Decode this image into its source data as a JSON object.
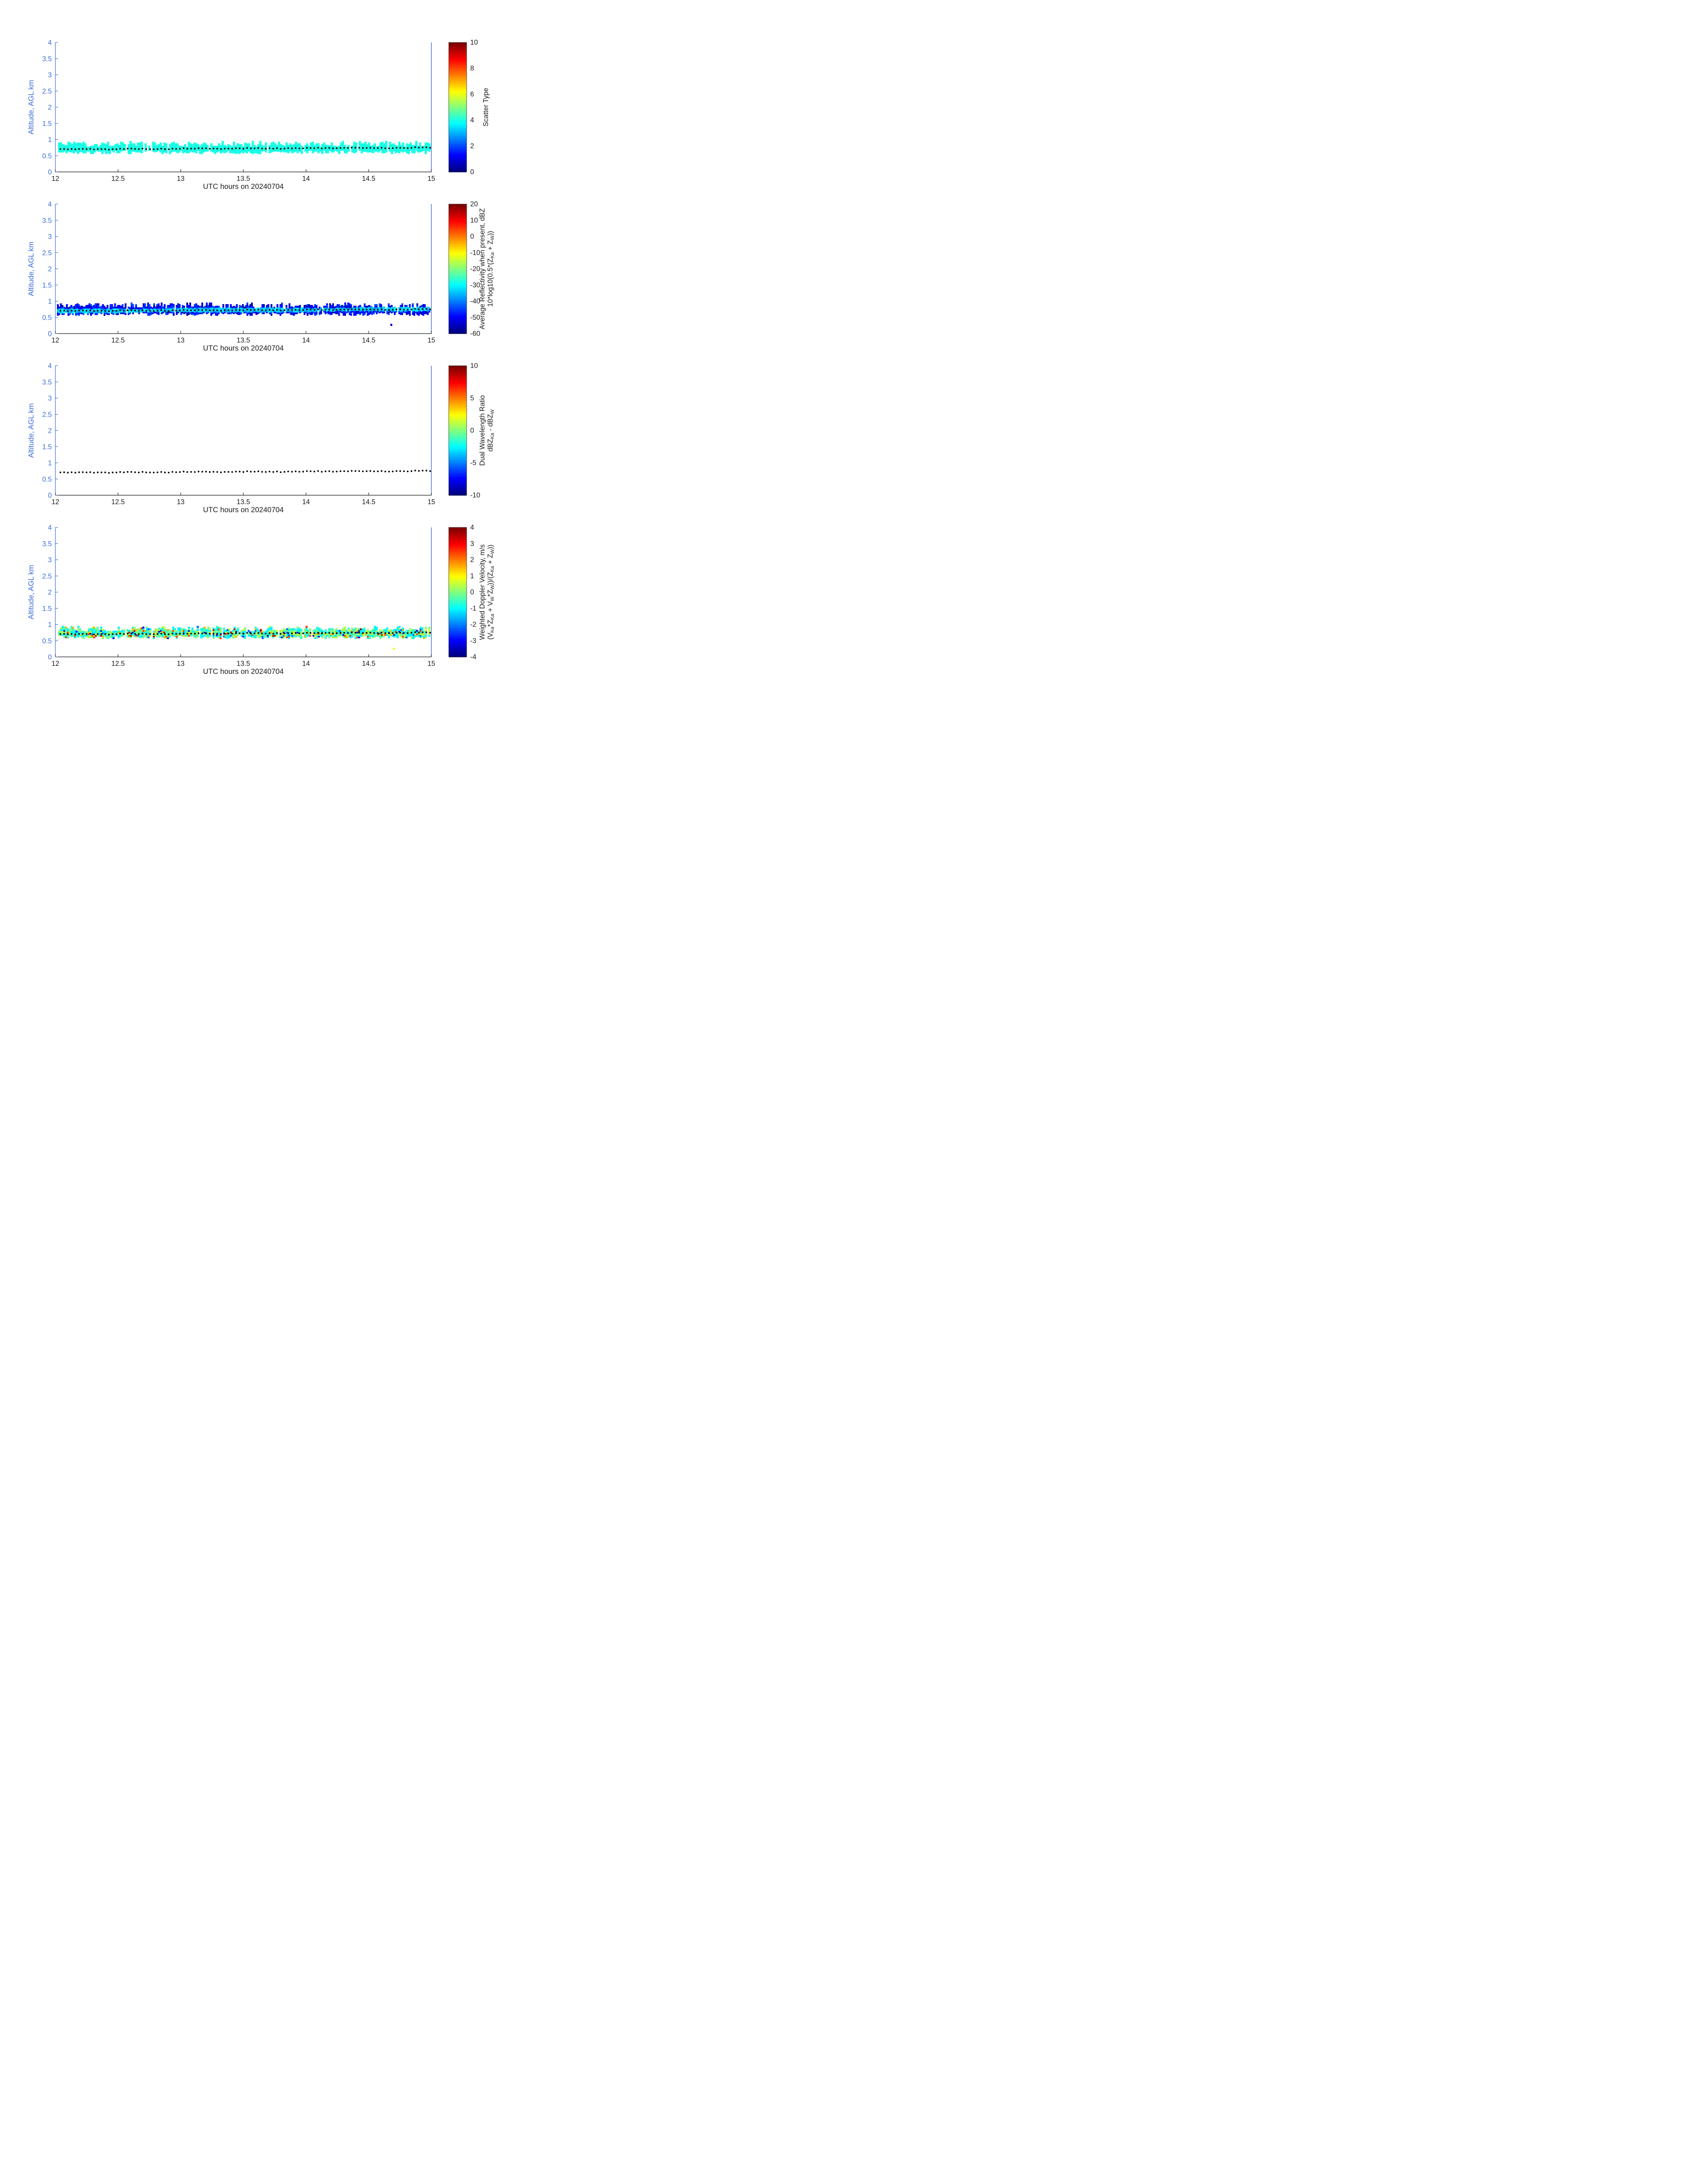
{
  "figure": {
    "background": "#ffffff",
    "colormap": "jet",
    "colors": {
      "y_axis": "#3c6cd6",
      "x_axis": "#1a1a1a",
      "dots": "#000000",
      "colorbar_border": "#222222"
    }
  },
  "dot_track": {
    "t_start": 12.04,
    "t_end": 14.99,
    "n": 100,
    "alt_start": 0.7,
    "alt_end": 0.75,
    "jitter": 0.012,
    "seed": 5
  },
  "chart_data": [
    {
      "type": "heatmap",
      "xlabel": "UTC hours on 20240704",
      "ylabel": "Altitude, AGL km",
      "xlim": [
        12,
        15
      ],
      "ylim": [
        0,
        4
      ],
      "xticks": [
        "12",
        "12.5",
        "13",
        "13.5",
        "14",
        "14.5",
        "15"
      ],
      "yticks": [
        "0",
        "0.5",
        "1",
        "1.5",
        "2",
        "2.5",
        "3",
        "3.5",
        "4"
      ],
      "colorbar": {
        "min": 0,
        "max": 10,
        "ticks": [
          "0",
          "2",
          "4",
          "6",
          "8",
          "10"
        ],
        "label_line1": "Scatter Type",
        "label_line2": ""
      },
      "band": {
        "t_start": 12.03,
        "t_end": 14.99,
        "dt": 0.015,
        "alt_bottom": 0.6,
        "alt_top": 0.85,
        "cell_h": 0.05,
        "gap_prob": 0.05,
        "seed": 11,
        "values": [
          {
            "v": 4,
            "w": 1
          }
        ],
        "outliers": []
      },
      "has_dot_track": true
    },
    {
      "type": "heatmap",
      "xlabel": "UTC hours on 20240704",
      "ylabel": "Altitude, AGL km",
      "xlim": [
        12,
        15
      ],
      "ylim": [
        0,
        4
      ],
      "xticks": [
        "12",
        "12.5",
        "13",
        "13.5",
        "14",
        "14.5",
        "15"
      ],
      "yticks": [
        "0",
        "0.5",
        "1",
        "1.5",
        "2",
        "2.5",
        "3",
        "3.5",
        "4"
      ],
      "colorbar": {
        "min": -60,
        "max": 20,
        "ticks": [
          "-60",
          "-50",
          "-40",
          "-30",
          "-20",
          "-10",
          "0",
          "10",
          "20"
        ],
        "label_line1": "Average Reflectivity when present, dBZ",
        "label_line2": "10*log10(0.5*(Z_[Ka] + Z_[W]))"
      },
      "band": {
        "t_start": 12.02,
        "t_end": 14.99,
        "dt": 0.012,
        "alt_bottom": 0.6,
        "alt_top": 0.84,
        "cell_h": 0.05,
        "gap_prob": 0.04,
        "seed": 23,
        "values": [
          {
            "v": -50,
            "w": 0.45
          },
          {
            "v": -45,
            "w": 0.3
          },
          {
            "v": -56,
            "w": 0.25
          }
        ],
        "center_value": -34,
        "center_spread": 8,
        "outliers": [
          {
            "t": 14.68,
            "alt": 0.27,
            "v": -54
          }
        ]
      },
      "has_dot_track": true
    },
    {
      "type": "scatter",
      "xlabel": "UTC hours on 20240704",
      "ylabel": "Altitude, AGL km",
      "xlim": [
        12,
        15
      ],
      "ylim": [
        0,
        4
      ],
      "xticks": [
        "12",
        "12.5",
        "13",
        "13.5",
        "14",
        "14.5",
        "15"
      ],
      "yticks": [
        "0",
        "0.5",
        "1",
        "1.5",
        "2",
        "2.5",
        "3",
        "3.5",
        "4"
      ],
      "colorbar": {
        "min": -10,
        "max": 10,
        "ticks": [
          "-10",
          "-5",
          "0",
          "5",
          "10"
        ],
        "label_line1": "Dual Wavelength Ratio",
        "label_line2": "dBZ_[Ka] - dBZ_[W]"
      },
      "band": null,
      "has_dot_track": true
    },
    {
      "type": "heatmap",
      "xlabel": "UTC hours on 20240704",
      "ylabel": "Altitude, AGL km",
      "xlim": [
        12,
        15
      ],
      "ylim": [
        0,
        4
      ],
      "xticks": [
        "12",
        "12.5",
        "13",
        "13.5",
        "14",
        "14.5",
        "15"
      ],
      "yticks": [
        "0",
        "0.5",
        "1",
        "1.5",
        "2",
        "2.5",
        "3",
        "3.5",
        "4"
      ],
      "colorbar": {
        "min": -4,
        "max": 4,
        "ticks": [
          "-4",
          "-3",
          "-2",
          "-1",
          "0",
          "1",
          "2",
          "3",
          "4"
        ],
        "label_line1": "Weighted Doppler Velocity, m/s",
        "label_line2": "(V_[Ka]*Z_[Ka] + V_[W]*Z_[W]))/(Z_[Ka] + Z_[W]))"
      },
      "band": {
        "t_start": 12.03,
        "t_end": 14.99,
        "dt": 0.014,
        "alt_bottom": 0.6,
        "alt_top": 0.85,
        "cell_h": 0.05,
        "gap_prob": 0.06,
        "seed": 37,
        "values": [
          {
            "v": -1.1,
            "w": 0.3
          },
          {
            "v": -0.5,
            "w": 0.22
          },
          {
            "v": 0.1,
            "w": 0.2
          },
          {
            "v": 0.5,
            "w": 0.12
          },
          {
            "v": 1.6,
            "w": 0.05
          },
          {
            "v": 2.6,
            "w": 0.04
          },
          {
            "v": 3.6,
            "w": 0.02
          },
          {
            "v": -3.4,
            "w": 0.03
          },
          {
            "v": -2.3,
            "w": 0.02
          }
        ],
        "outliers": [
          {
            "t": 14.7,
            "alt": 0.25,
            "v": 0.9
          }
        ]
      },
      "has_dot_track": true
    }
  ]
}
